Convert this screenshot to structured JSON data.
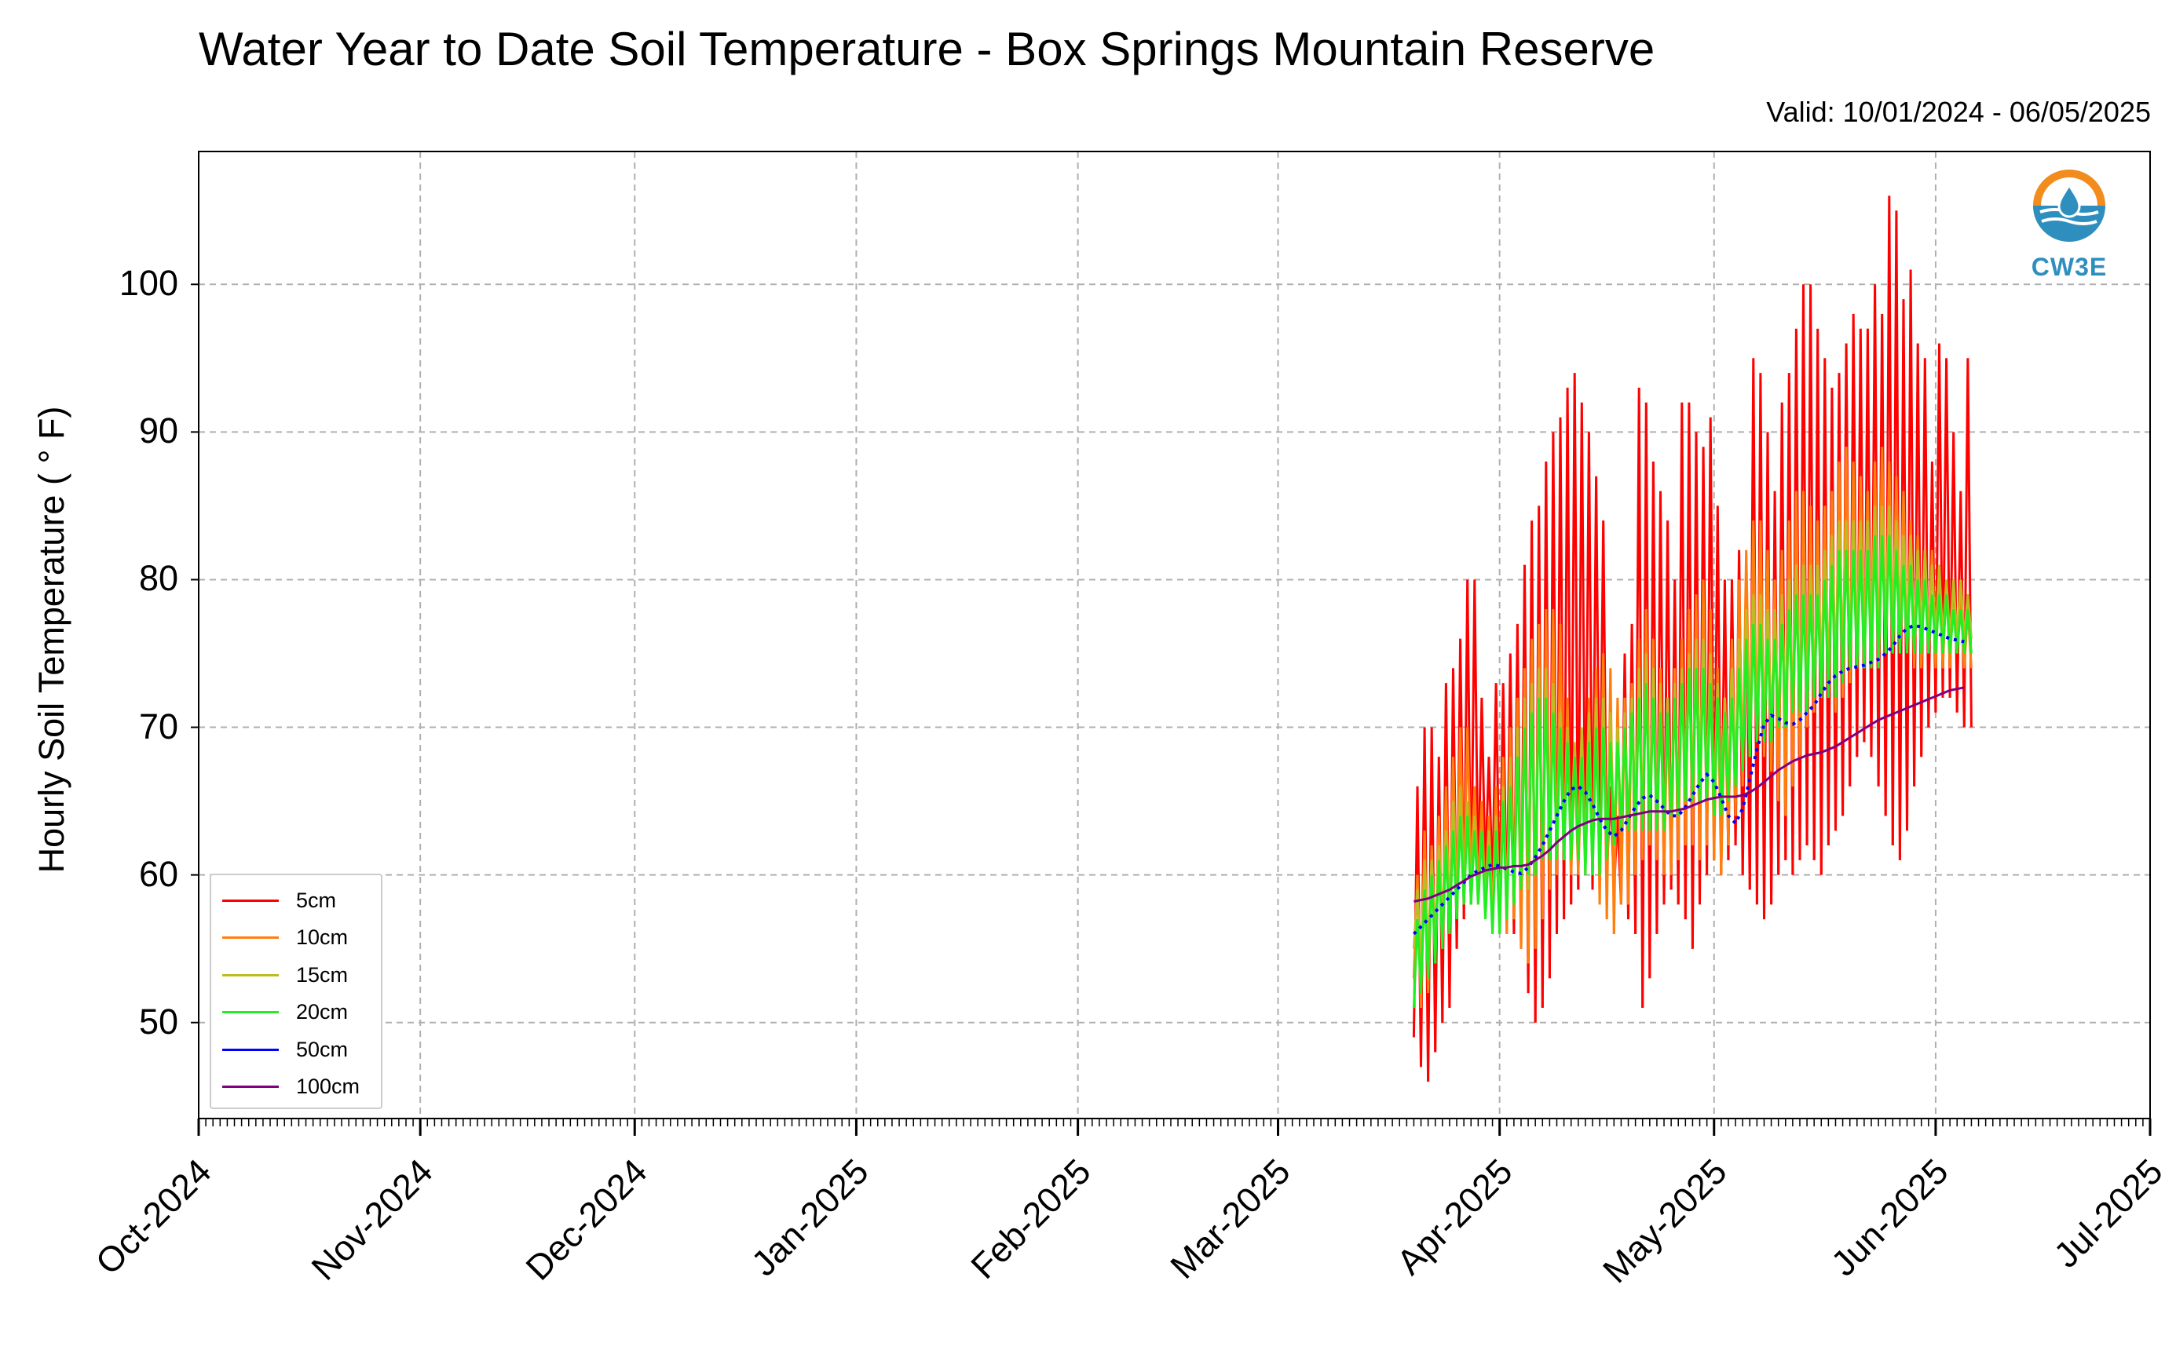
{
  "title": "Water Year to Date Soil Temperature - Box Springs Mountain Reserve",
  "valid": "Valid: 10/01/2024 - 06/05/2025",
  "logo_text": "CW3E",
  "chart_data": {
    "type": "line",
    "title": "Water Year to Date Soil Temperature - Box Springs Mountain Reserve",
    "subtitle": "Valid: 10/01/2024 - 06/05/2025",
    "ylabel": "Hourly Soil Temperature ( ° F)",
    "xlabel": "",
    "ylim": [
      43.5,
      109
    ],
    "xlim": [
      "2024-10-01",
      "2025-07-01"
    ],
    "yticks": [
      50,
      60,
      70,
      80,
      90,
      100
    ],
    "xtick_labels": [
      "Oct-2024",
      "Nov-2024",
      "Dec-2024",
      "Jan-2025",
      "Feb-2025",
      "Mar-2025",
      "Apr-2025",
      "May-2025",
      "Jun-2025",
      "Jul-2025"
    ],
    "xtick_dates": [
      "2024-10-01",
      "2024-11-01",
      "2024-12-01",
      "2025-01-01",
      "2025-02-01",
      "2025-03-01",
      "2025-04-01",
      "2025-05-01",
      "2025-06-01",
      "2025-07-01"
    ],
    "grid": true,
    "legend_position": "lower-left",
    "series": [
      {
        "name": "5cm",
        "color": "#ff0000",
        "daily_min": [
          49,
          47,
          46,
          48,
          50,
          51,
          55,
          57,
          58,
          59,
          60,
          59,
          58,
          57,
          56,
          55,
          52,
          50,
          51,
          53,
          56,
          57,
          58,
          59,
          60,
          59,
          61,
          60,
          59,
          58,
          57,
          56,
          51,
          53,
          56,
          58,
          59,
          58,
          57,
          55,
          58,
          60,
          61,
          60,
          61,
          62,
          60,
          59,
          58,
          57,
          58,
          60,
          61,
          60,
          61,
          62,
          61,
          60,
          62,
          63,
          64,
          66,
          68,
          69,
          68,
          66,
          64,
          62,
          61,
          63,
          66,
          68,
          70,
          71,
          72,
          72,
          71,
          70
        ],
        "daily_max": [
          66,
          70,
          70,
          68,
          73,
          74,
          76,
          80,
          80,
          72,
          68,
          73,
          73,
          75,
          77,
          81,
          84,
          85,
          88,
          90,
          91,
          93,
          94,
          92,
          90,
          87,
          84,
          66,
          64,
          75,
          77,
          93,
          92,
          88,
          86,
          84,
          80,
          92,
          92,
          90,
          89,
          91,
          85,
          80,
          80,
          82,
          80,
          95,
          94,
          90,
          86,
          92,
          94,
          97,
          100,
          100,
          97,
          95,
          93,
          94,
          96,
          98,
          97,
          97,
          100,
          98,
          106,
          105,
          99,
          101,
          96,
          95,
          88,
          96,
          95,
          90,
          86,
          95
        ]
      },
      {
        "name": "10cm",
        "color": "#ff7f0e",
        "daily_min": [
          53,
          51,
          52,
          54,
          55,
          56,
          58,
          59,
          60,
          59,
          58,
          57,
          56,
          56,
          57,
          55,
          54,
          55,
          57,
          59,
          60,
          61,
          60,
          60,
          61,
          60,
          58,
          57,
          56,
          58,
          58,
          60,
          61,
          62,
          61,
          60,
          60,
          61,
          62,
          62,
          61,
          62,
          61,
          60,
          62,
          64,
          66,
          68,
          69,
          68,
          67,
          65,
          64,
          66,
          68,
          70,
          71,
          72,
          72,
          71,
          72,
          73,
          74,
          75,
          74,
          74,
          75,
          76,
          76,
          75,
          74,
          74,
          75,
          74,
          74,
          74,
          75,
          74
        ],
        "daily_max": [
          60,
          63,
          62,
          64,
          66,
          68,
          70,
          70,
          66,
          65,
          64,
          66,
          68,
          70,
          72,
          74,
          76,
          77,
          78,
          78,
          77,
          72,
          68,
          68,
          72,
          74,
          75,
          74,
          72,
          72,
          73,
          76,
          78,
          76,
          74,
          72,
          74,
          76,
          78,
          79,
          80,
          78,
          74,
          72,
          76,
          80,
          82,
          84,
          84,
          82,
          80,
          82,
          84,
          86,
          86,
          85,
          84,
          85,
          86,
          88,
          89,
          88,
          87,
          86,
          88,
          89,
          88,
          87,
          86,
          84,
          83,
          82,
          82,
          81,
          80,
          80,
          79,
          78
        ]
      },
      {
        "name": "15cm",
        "color": "#bcbd22",
        "daily_min": [
          55,
          54,
          55,
          56,
          57,
          58,
          58,
          59,
          59,
          58,
          58,
          57,
          57,
          58,
          58,
          59,
          59,
          60,
          61,
          61,
          61,
          62,
          62,
          62,
          61,
          60,
          60,
          61,
          62,
          63,
          63,
          64,
          64,
          63,
          63,
          63,
          64,
          65,
          66,
          66,
          67,
          66,
          65,
          65,
          66,
          67,
          68,
          69,
          70,
          70,
          70,
          70,
          71,
          72,
          72,
          72,
          73,
          74,
          74,
          74,
          75,
          75,
          76,
          76,
          76,
          76,
          77,
          77,
          77,
          76,
          76,
          76,
          76,
          76,
          76,
          76,
          76,
          76
        ],
        "daily_max": [
          59,
          61,
          61,
          62,
          63,
          65,
          66,
          65,
          64,
          63,
          63,
          64,
          66,
          68,
          70,
          72,
          73,
          74,
          74,
          73,
          71,
          70,
          69,
          70,
          71,
          72,
          72,
          71,
          70,
          71,
          72,
          74,
          75,
          74,
          73,
          72,
          73,
          74,
          75,
          76,
          76,
          75,
          73,
          72,
          74,
          76,
          78,
          79,
          79,
          78,
          78,
          79,
          80,
          81,
          81,
          81,
          81,
          82,
          83,
          84,
          84,
          84,
          84,
          84,
          85,
          85,
          85,
          84,
          83,
          83,
          82,
          82,
          81,
          81,
          80,
          80,
          80,
          79
        ]
      },
      {
        "name": "20cm",
        "color": "#22ee22",
        "daily_min": [
          51,
          52,
          53,
          54,
          55,
          56,
          57,
          58,
          58,
          58,
          57,
          56,
          56,
          57,
          58,
          59,
          60,
          60,
          61,
          61,
          61,
          61,
          61,
          61,
          60,
          60,
          60,
          61,
          62,
          63,
          63,
          63,
          63,
          63,
          63,
          63,
          64,
          64,
          65,
          65,
          65,
          65,
          64,
          64,
          65,
          66,
          67,
          68,
          69,
          69,
          69,
          70,
          70,
          71,
          71,
          71,
          72,
          72,
          72,
          72,
          73,
          74,
          74,
          74,
          74,
          74,
          75,
          75,
          75,
          75,
          75,
          75,
          75,
          75,
          75,
          75,
          75,
          75
        ],
        "daily_max": [
          57,
          59,
          60,
          61,
          62,
          63,
          64,
          64,
          63,
          63,
          62,
          63,
          65,
          66,
          68,
          70,
          71,
          72,
          72,
          71,
          70,
          69,
          68,
          68,
          69,
          70,
          70,
          69,
          69,
          70,
          71,
          72,
          73,
          72,
          71,
          71,
          72,
          73,
          74,
          74,
          74,
          73,
          72,
          71,
          72,
          74,
          76,
          77,
          77,
          76,
          76,
          77,
          78,
          79,
          79,
          79,
          79,
          80,
          81,
          82,
          82,
          82,
          82,
          82,
          83,
          83,
          83,
          82,
          81,
          81,
          80,
          80,
          79,
          79,
          79,
          78,
          78,
          78
        ]
      },
      {
        "name": "50cm",
        "color": "#0000ff",
        "values": [
          56,
          56.5,
          57,
          57.5,
          58,
          58.5,
          59,
          59.5,
          60,
          60.3,
          60.5,
          60.7,
          60.6,
          60.4,
          60.2,
          60.1,
          60.5,
          61.2,
          62,
          63,
          64,
          65,
          65.8,
          66,
          65.6,
          64.8,
          63.8,
          63,
          62.6,
          63,
          63.8,
          64.6,
          65.2,
          65.4,
          65,
          64.5,
          64,
          64,
          64.6,
          65.4,
          66.2,
          66.8,
          66.3,
          65.2,
          64,
          63.5,
          64.5,
          66.5,
          68.5,
          70.2,
          70.8,
          70.6,
          70.3,
          70.2,
          70.5,
          71,
          71.5,
          72.3,
          73,
          73.5,
          73.8,
          74,
          74.1,
          74.2,
          74.4,
          74.6,
          75,
          75.5,
          76.2,
          76.7,
          76.9,
          76.8,
          76.6,
          76.4,
          76.2,
          76,
          75.9,
          75.8
        ]
      },
      {
        "name": "100cm",
        "color": "#800080",
        "values": [
          58.2,
          58.3,
          58.4,
          58.6,
          58.8,
          59,
          59.3,
          59.6,
          59.9,
          60.1,
          60.3,
          60.4,
          60.5,
          60.5,
          60.6,
          60.6,
          60.7,
          61,
          61.3,
          61.7,
          62.2,
          62.6,
          63,
          63.3,
          63.5,
          63.7,
          63.8,
          63.8,
          63.8,
          63.9,
          64,
          64.1,
          64.2,
          64.3,
          64.3,
          64.3,
          64.3,
          64.4,
          64.5,
          64.7,
          64.9,
          65.1,
          65.2,
          65.3,
          65.3,
          65.3,
          65.4,
          65.6,
          65.9,
          66.3,
          66.7,
          67.1,
          67.4,
          67.7,
          67.9,
          68.1,
          68.2,
          68.3,
          68.5,
          68.7,
          69,
          69.3,
          69.6,
          69.9,
          70.2,
          70.5,
          70.7,
          70.9,
          71.1,
          71.3,
          71.5,
          71.7,
          71.9,
          72.1,
          72.3,
          72.5,
          72.6,
          72.7
        ]
      }
    ],
    "series_start_date": "2025-03-20"
  }
}
